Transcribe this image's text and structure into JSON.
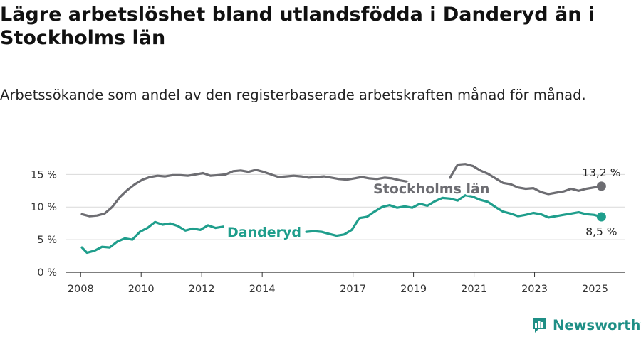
{
  "header": {
    "title": "Lägre arbetslöshet bland utlandsfödda i Danderyd än i Stockholms län",
    "subtitle": "Arbetssökande som andel av den registerbaserade arbetskraften månad för månad."
  },
  "brand": {
    "name": "Newsworthy",
    "icon": "bar-chart-icon",
    "color": "#1f8f86"
  },
  "chart_data": {
    "type": "line",
    "title": "Lägre arbetslöshet bland utlandsfödda i Danderyd än i Stockholms län",
    "subtitle": "Arbetssökande som andel av den registerbaserade arbetskraften månad för månad.",
    "xlabel": "",
    "ylabel": "",
    "x_ticks": [
      "2008",
      "2010",
      "2012",
      "2014",
      "2017",
      "2019",
      "2021",
      "2023",
      "2025"
    ],
    "y_ticks": [
      "0 %",
      "5 %",
      "10 %",
      "15 %"
    ],
    "ylim": [
      0,
      17
    ],
    "grid": true,
    "legend": "inline labels",
    "series": [
      {
        "name": "Stockholms län",
        "color": "#6d6d72",
        "last_label": "13,2 %",
        "points": [
          [
            "2008-01",
            8.9
          ],
          [
            "2008-04",
            8.6
          ],
          [
            "2008-07",
            8.7
          ],
          [
            "2008-10",
            9.0
          ],
          [
            "2009-01",
            10.0
          ],
          [
            "2009-04",
            11.5
          ],
          [
            "2009-07",
            12.6
          ],
          [
            "2009-10",
            13.5
          ],
          [
            "2010-01",
            14.2
          ],
          [
            "2010-04",
            14.6
          ],
          [
            "2010-07",
            14.8
          ],
          [
            "2010-10",
            14.7
          ],
          [
            "2011-01",
            14.9
          ],
          [
            "2011-04",
            14.9
          ],
          [
            "2011-07",
            14.8
          ],
          [
            "2011-10",
            15.0
          ],
          [
            "2012-01",
            15.2
          ],
          [
            "2012-04",
            14.8
          ],
          [
            "2012-07",
            14.9
          ],
          [
            "2012-10",
            15.0
          ],
          [
            "2013-01",
            15.5
          ],
          [
            "2013-04",
            15.6
          ],
          [
            "2013-07",
            15.4
          ],
          [
            "2013-10",
            15.7
          ],
          [
            "2014-01",
            15.4
          ],
          [
            "2014-04",
            15.0
          ],
          [
            "2014-07",
            14.6
          ],
          [
            "2014-10",
            14.7
          ],
          [
            "2015-01",
            14.8
          ],
          [
            "2015-04",
            14.7
          ],
          [
            "2015-07",
            14.5
          ],
          [
            "2015-10",
            14.6
          ],
          [
            "2016-01",
            14.7
          ],
          [
            "2016-04",
            14.5
          ],
          [
            "2016-07",
            14.3
          ],
          [
            "2016-10",
            14.2
          ],
          [
            "2017-01",
            14.4
          ],
          [
            "2017-04",
            14.6
          ],
          [
            "2017-07",
            14.4
          ],
          [
            "2017-10",
            14.3
          ],
          [
            "2018-01",
            14.5
          ],
          [
            "2018-04",
            14.4
          ],
          [
            "2018-07",
            14.1
          ],
          [
            "2018-10",
            13.9
          ],
          null,
          [
            "2020-03",
            14.5
          ],
          [
            "2020-06",
            16.5
          ],
          [
            "2020-09",
            16.6
          ],
          [
            "2020-12",
            16.3
          ],
          [
            "2021-03",
            15.6
          ],
          [
            "2021-06",
            15.1
          ],
          [
            "2021-09",
            14.4
          ],
          [
            "2021-12",
            13.7
          ],
          [
            "2022-03",
            13.5
          ],
          [
            "2022-06",
            13.0
          ],
          [
            "2022-09",
            12.8
          ],
          [
            "2022-12",
            12.9
          ],
          [
            "2023-03",
            12.3
          ],
          [
            "2023-06",
            12.0
          ],
          [
            "2023-09",
            12.2
          ],
          [
            "2023-12",
            12.4
          ],
          [
            "2024-03",
            12.8
          ],
          [
            "2024-06",
            12.5
          ],
          [
            "2024-09",
            12.8
          ],
          [
            "2024-12",
            13.0
          ],
          [
            "2025-03",
            13.2
          ]
        ]
      },
      {
        "name": "Danderyd",
        "color": "#1f9e8c",
        "last_label": "8,5 %",
        "points": [
          [
            "2008-01",
            3.8
          ],
          [
            "2008-03",
            3.0
          ],
          [
            "2008-06",
            3.3
          ],
          [
            "2008-09",
            3.9
          ],
          [
            "2008-12",
            3.8
          ],
          [
            "2009-03",
            4.7
          ],
          [
            "2009-06",
            5.2
          ],
          [
            "2009-09",
            5.0
          ],
          [
            "2009-12",
            6.2
          ],
          [
            "2010-03",
            6.8
          ],
          [
            "2010-06",
            7.7
          ],
          [
            "2010-09",
            7.3
          ],
          [
            "2010-12",
            7.5
          ],
          [
            "2011-03",
            7.1
          ],
          [
            "2011-06",
            6.4
          ],
          [
            "2011-09",
            6.7
          ],
          [
            "2011-12",
            6.5
          ],
          [
            "2012-03",
            7.2
          ],
          [
            "2012-06",
            6.8
          ],
          [
            "2012-09",
            7.0
          ],
          null,
          [
            "2015-06",
            6.2
          ],
          [
            "2015-09",
            6.3
          ],
          [
            "2015-12",
            6.2
          ],
          [
            "2016-03",
            5.9
          ],
          [
            "2016-06",
            5.6
          ],
          [
            "2016-09",
            5.8
          ],
          [
            "2016-12",
            6.5
          ],
          [
            "2017-03",
            8.3
          ],
          [
            "2017-06",
            8.5
          ],
          [
            "2017-09",
            9.3
          ],
          [
            "2017-12",
            10.0
          ],
          [
            "2018-03",
            10.3
          ],
          [
            "2018-06",
            9.9
          ],
          [
            "2018-09",
            10.1
          ],
          [
            "2018-12",
            9.9
          ],
          [
            "2019-03",
            10.5
          ],
          [
            "2019-06",
            10.2
          ],
          [
            "2019-09",
            10.9
          ],
          [
            "2019-12",
            11.4
          ],
          [
            "2020-03",
            11.3
          ],
          [
            "2020-06",
            11.0
          ],
          [
            "2020-09",
            11.8
          ],
          [
            "2020-12",
            11.6
          ],
          [
            "2021-03",
            11.1
          ],
          [
            "2021-06",
            10.8
          ],
          [
            "2021-09",
            10.0
          ],
          [
            "2021-12",
            9.3
          ],
          [
            "2022-03",
            9.0
          ],
          [
            "2022-06",
            8.6
          ],
          [
            "2022-09",
            8.8
          ],
          [
            "2022-12",
            9.1
          ],
          [
            "2023-03",
            8.9
          ],
          [
            "2023-06",
            8.4
          ],
          [
            "2023-09",
            8.6
          ],
          [
            "2023-12",
            8.8
          ],
          [
            "2024-03",
            9.0
          ],
          [
            "2024-06",
            9.2
          ],
          [
            "2024-09",
            8.9
          ],
          [
            "2024-12",
            8.8
          ],
          [
            "2025-03",
            8.5
          ]
        ]
      }
    ]
  }
}
